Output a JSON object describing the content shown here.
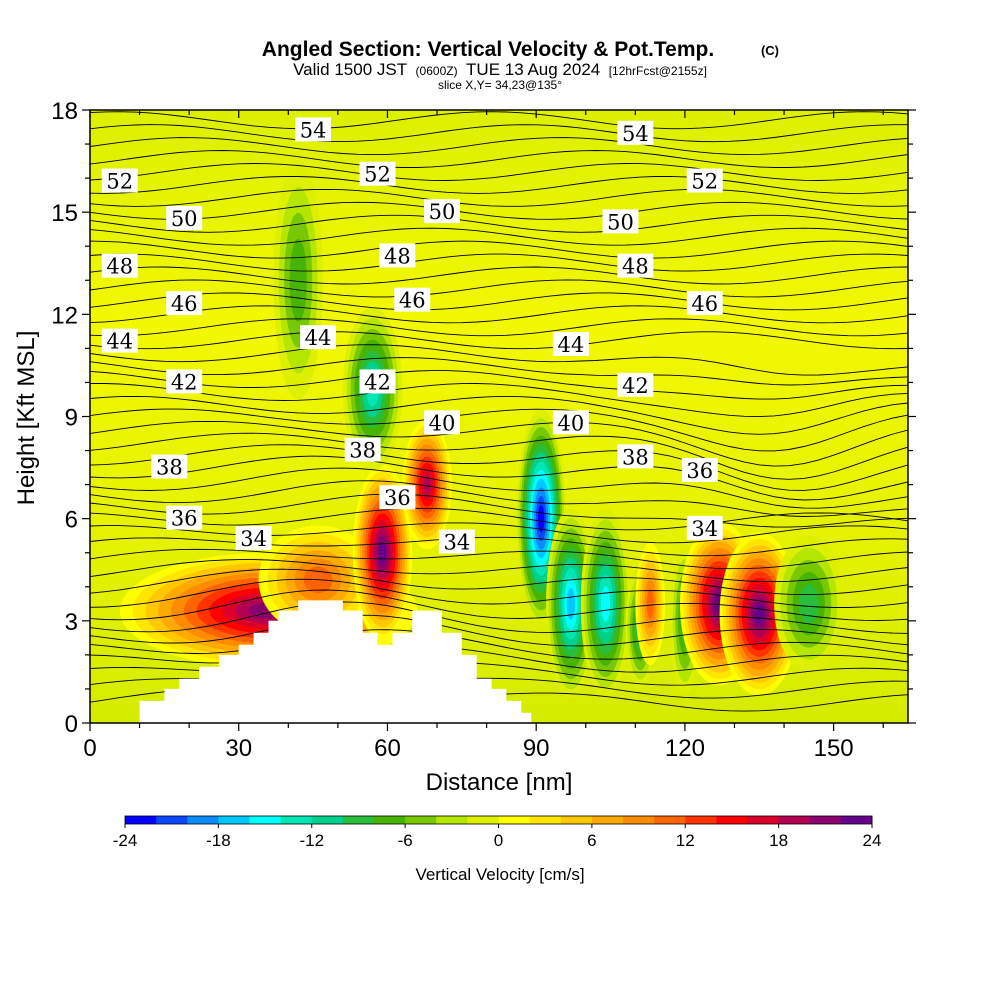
{
  "titles": {
    "main": "Angled Section: Vertical Velocity & Pot.Temp.",
    "main_suffix": "(C)",
    "valid_prefix": "Valid 1500 JST",
    "valid_utc": "(0600Z)",
    "valid_date": "TUE 13 Aug 2024",
    "forecast": "[12hrFcst@2155z]",
    "slice": "slice X,Y= 34,23@135°"
  },
  "chart_data": {
    "type": "heatmap",
    "xlabel": "Distance [nm]",
    "ylabel": "Height [Kft MSL]",
    "xlim": [
      0,
      165
    ],
    "ylim": [
      0,
      18
    ],
    "x_ticks": [
      0,
      30,
      60,
      90,
      120,
      150
    ],
    "y_ticks": [
      0,
      3,
      6,
      9,
      12,
      15,
      18
    ],
    "colorbar": {
      "label": "Vertical Velocity [cm/s]",
      "range": [
        -24,
        24
      ],
      "ticks": [
        -24,
        -18,
        -12,
        -6,
        0,
        6,
        12,
        18,
        24
      ],
      "colors": [
        "#0000ff",
        "#0a46ff",
        "#0a8cff",
        "#00c8ff",
        "#00ffff",
        "#00e6b4",
        "#00d28c",
        "#28be3c",
        "#46b400",
        "#78c800",
        "#b4e600",
        "#dcf000",
        "#ffff00",
        "#ffe600",
        "#ffc800",
        "#ffaa00",
        "#ff8c00",
        "#ff6400",
        "#ff3200",
        "#ff0000",
        "#dc0028",
        "#b40050",
        "#8c006e",
        "#64008c"
      ]
    },
    "series": [
      {
        "name": "Vertical Velocity",
        "units": "cm/s",
        "features": [
          {
            "x": 36,
            "z": 3.3,
            "value": 22
          },
          {
            "x": 46,
            "z": 4.2,
            "value": 12
          },
          {
            "x": 59,
            "z": 5.0,
            "value": 24
          },
          {
            "x": 68,
            "z": 7.0,
            "value": 20
          },
          {
            "x": 91,
            "z": 6.0,
            "value": -24
          },
          {
            "x": 97,
            "z": 3.5,
            "value": -17
          },
          {
            "x": 104,
            "z": 3.5,
            "value": -16
          },
          {
            "x": 111,
            "z": 2.8,
            "value": -12
          },
          {
            "x": 113,
            "z": 3.5,
            "value": 12
          },
          {
            "x": 120,
            "z": 3.0,
            "value": -10
          },
          {
            "x": 127,
            "z": 3.5,
            "value": 24
          },
          {
            "x": 135,
            "z": 3.2,
            "value": 24
          },
          {
            "x": 145,
            "z": 3.5,
            "value": -9
          },
          {
            "x": 57,
            "z": 9.8,
            "value": -14
          },
          {
            "x": 42,
            "z": 13.0,
            "value": -8
          }
        ]
      },
      {
        "name": "Pot.Temp.",
        "units": "C",
        "contour_levels": [
          34,
          36,
          38,
          40,
          42,
          44,
          46,
          48,
          50,
          52,
          54
        ],
        "labels": [
          {
            "x": 33,
            "z": 5.4,
            "value": "34"
          },
          {
            "x": 74,
            "z": 5.3,
            "value": "34"
          },
          {
            "x": 124,
            "z": 5.7,
            "value": "34"
          },
          {
            "x": 19,
            "z": 6.0,
            "value": "36"
          },
          {
            "x": 62,
            "z": 6.6,
            "value": "36"
          },
          {
            "x": 123,
            "z": 7.4,
            "value": "36"
          },
          {
            "x": 16,
            "z": 7.5,
            "value": "38"
          },
          {
            "x": 55,
            "z": 8.0,
            "value": "38"
          },
          {
            "x": 110,
            "z": 7.8,
            "value": "38"
          },
          {
            "x": 71,
            "z": 8.8,
            "value": "40"
          },
          {
            "x": 97,
            "z": 8.8,
            "value": "40"
          },
          {
            "x": 19,
            "z": 10.0,
            "value": "42"
          },
          {
            "x": 58,
            "z": 10.0,
            "value": "42"
          },
          {
            "x": 110,
            "z": 9.9,
            "value": "42"
          },
          {
            "x": 6,
            "z": 11.2,
            "value": "44"
          },
          {
            "x": 46,
            "z": 11.3,
            "value": "44"
          },
          {
            "x": 97,
            "z": 11.1,
            "value": "44"
          },
          {
            "x": 19,
            "z": 12.3,
            "value": "46"
          },
          {
            "x": 65,
            "z": 12.4,
            "value": "46"
          },
          {
            "x": 124,
            "z": 12.3,
            "value": "46"
          },
          {
            "x": 6,
            "z": 13.4,
            "value": "48"
          },
          {
            "x": 62,
            "z": 13.7,
            "value": "48"
          },
          {
            "x": 110,
            "z": 13.4,
            "value": "48"
          },
          {
            "x": 19,
            "z": 14.8,
            "value": "50"
          },
          {
            "x": 71,
            "z": 15.0,
            "value": "50"
          },
          {
            "x": 107,
            "z": 14.7,
            "value": "50"
          },
          {
            "x": 6,
            "z": 15.9,
            "value": "52"
          },
          {
            "x": 58,
            "z": 16.1,
            "value": "52"
          },
          {
            "x": 124,
            "z": 15.9,
            "value": "52"
          },
          {
            "x": 45,
            "z": 17.4,
            "value": "54"
          },
          {
            "x": 110,
            "z": 17.3,
            "value": "54"
          }
        ]
      }
    ],
    "terrain": [
      {
        "x": 0,
        "z": 0
      },
      {
        "x": 10,
        "z": 0
      },
      {
        "x": 10,
        "z": 0.65
      },
      {
        "x": 15,
        "z": 0.65
      },
      {
        "x": 15,
        "z": 1.0
      },
      {
        "x": 18,
        "z": 1.0
      },
      {
        "x": 18,
        "z": 1.3
      },
      {
        "x": 22,
        "z": 1.3
      },
      {
        "x": 22,
        "z": 1.65
      },
      {
        "x": 26,
        "z": 1.65
      },
      {
        "x": 26,
        "z": 2.0
      },
      {
        "x": 30,
        "z": 2.0
      },
      {
        "x": 30,
        "z": 2.3
      },
      {
        "x": 33,
        "z": 2.3
      },
      {
        "x": 33,
        "z": 2.65
      },
      {
        "x": 36,
        "z": 2.65
      },
      {
        "x": 36,
        "z": 3.0
      },
      {
        "x": 38,
        "z": 3.0
      },
      {
        "x": 38,
        "z": 3.3
      },
      {
        "x": 42,
        "z": 3.3
      },
      {
        "x": 42,
        "z": 3.6
      },
      {
        "x": 51,
        "z": 3.6
      },
      {
        "x": 51,
        "z": 3.3
      },
      {
        "x": 55,
        "z": 3.3
      },
      {
        "x": 55,
        "z": 2.65
      },
      {
        "x": 58,
        "z": 2.65
      },
      {
        "x": 58,
        "z": 2.3
      },
      {
        "x": 61,
        "z": 2.3
      },
      {
        "x": 61,
        "z": 2.65
      },
      {
        "x": 65,
        "z": 2.65
      },
      {
        "x": 65,
        "z": 3.3
      },
      {
        "x": 71,
        "z": 3.3
      },
      {
        "x": 71,
        "z": 2.65
      },
      {
        "x": 75,
        "z": 2.65
      },
      {
        "x": 75,
        "z": 2.0
      },
      {
        "x": 78,
        "z": 2.0
      },
      {
        "x": 78,
        "z": 1.3
      },
      {
        "x": 81,
        "z": 1.3
      },
      {
        "x": 81,
        "z": 1.0
      },
      {
        "x": 84,
        "z": 1.0
      },
      {
        "x": 84,
        "z": 0.65
      },
      {
        "x": 87,
        "z": 0.65
      },
      {
        "x": 87,
        "z": 0.3
      },
      {
        "x": 89,
        "z": 0.3
      },
      {
        "x": 89,
        "z": 0
      },
      {
        "x": 165,
        "z": 0
      }
    ]
  }
}
